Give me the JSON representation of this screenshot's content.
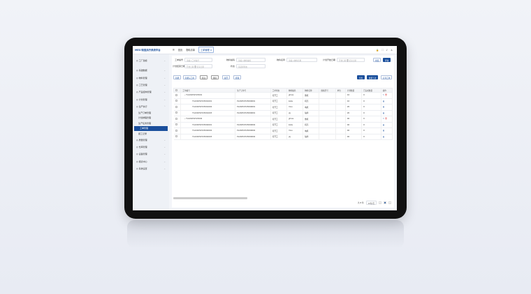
{
  "app": {
    "title": "MES-制造执行系统平台",
    "tabs": [
      "首页",
      "物料清单",
      "工单管理"
    ],
    "header_icons": [
      "lock-icon",
      "fullscreen-icon",
      "bell-icon",
      "user-icon"
    ]
  },
  "sidebar": {
    "items": [
      {
        "label": "工厂建模",
        "icon": "factory-icon"
      },
      {
        "label": "基础数据",
        "icon": "gear-icon"
      },
      {
        "label": "物料管理",
        "icon": "box-icon"
      },
      {
        "label": "工艺管理",
        "icon": "flow-icon"
      },
      {
        "label": "产品结构管理",
        "icon": "tree-icon"
      },
      {
        "label": "计划管理",
        "icon": "calendar-icon"
      },
      {
        "label": "生产执行",
        "icon": "play-icon",
        "expanded": true,
        "children": [
          "生产订单管理",
          "计划排程管理",
          "生产任务管理",
          "工单管理",
          "报工记录"
        ],
        "active_child": 3
      },
      {
        "label": "质量管理",
        "icon": "shield-icon"
      },
      {
        "label": "仓库管理",
        "icon": "warehouse-icon"
      },
      {
        "label": "设备管理",
        "icon": "device-icon"
      },
      {
        "label": "报表中心",
        "icon": "chart-icon"
      },
      {
        "label": "系统设置",
        "icon": "settings-icon"
      }
    ]
  },
  "filters": {
    "work_order_no": {
      "label": "工单编号",
      "placeholder": "请输入工单编号"
    },
    "material_code": {
      "label": "物料编码",
      "placeholder": "请输入物料编码"
    },
    "material_name": {
      "label": "物料名称",
      "placeholder": "请输入物料名称"
    },
    "plan_start": {
      "label": "计划开始日期",
      "from": "开始日期",
      "to": "结束日期",
      "sep": "至"
    },
    "plan_end": {
      "label": "计划结束日期",
      "from": "开始日期",
      "to": "结束日期",
      "sep": "至"
    },
    "status": {
      "label": "状态",
      "placeholder": "请选择状态"
    },
    "reset": "重置",
    "search": "查询"
  },
  "toolbar": {
    "add": "新增",
    "add_sub": "新增子工单",
    "edit": "修改",
    "delete": "删除",
    "expand": "展开",
    "collapse": "折叠",
    "export": "导出",
    "batch": "批量下达",
    "print": "打印工单"
  },
  "table": {
    "columns": [
      "工单编号",
      "生产订单号",
      "工单状态",
      "物料编码",
      "物料名称",
      "规格型号",
      "单位",
      "计划数量",
      "已完成数量",
      "操作"
    ],
    "rows": [
      {
        "level": 0,
        "code": "FLX20250723001",
        "order": "",
        "status": "待开工",
        "mcode": "jjmxa",
        "mname": "整机",
        "qty": "10",
        "done": "0",
        "ops": [
          "edit",
          "delete"
        ]
      },
      {
        "level": 1,
        "code": "FLX20250723001001",
        "order": "PL20250723000001",
        "status": "待开工",
        "mcode": "kaiw",
        "mname": "机壳",
        "qty": "10",
        "done": "0",
        "ops": [
          "view"
        ]
      },
      {
        "level": 1,
        "code": "FLX20250723001002",
        "order": "PL20250723000001",
        "status": "待开工",
        "mcode": "mxu",
        "mname": "电机",
        "qty": "20",
        "done": "0",
        "ops": [
          "view"
        ]
      },
      {
        "level": 1,
        "code": "FLX20250723001003",
        "order": "PL20250723000001",
        "status": "待开工",
        "mcode": "jxj",
        "mname": "轴承",
        "qty": "20",
        "done": "0",
        "ops": [
          "view"
        ]
      },
      {
        "level": 0,
        "code": "FLX20250723002",
        "order": "",
        "status": "待开工",
        "mcode": "jjmxa",
        "mname": "整机",
        "qty": "40",
        "done": "0",
        "ops": [
          "edit",
          "delete"
        ]
      },
      {
        "level": 1,
        "code": "FLX20250723002001",
        "order": "PL20250723000002",
        "status": "待开工",
        "mcode": "kaiw",
        "mname": "机壳",
        "qty": "40",
        "done": "0",
        "ops": [
          "view"
        ]
      },
      {
        "level": 1,
        "code": "FLX20250723002002",
        "order": "PL20250723000002",
        "status": "待开工",
        "mcode": "mxu",
        "mname": "电机",
        "qty": "40",
        "done": "0",
        "ops": [
          "view"
        ]
      },
      {
        "level": 1,
        "code": "FLX20250723002003",
        "order": "PL20250723000002",
        "status": "待开工",
        "mcode": "jxj",
        "mname": "轴承",
        "qty": "40",
        "done": "0",
        "ops": [
          "view"
        ]
      }
    ]
  },
  "pager": {
    "total": "共 8 条",
    "size": "10条/页",
    "page": "1"
  },
  "colors": {
    "brand": "#1a4f9c",
    "danger": "#e05050"
  }
}
